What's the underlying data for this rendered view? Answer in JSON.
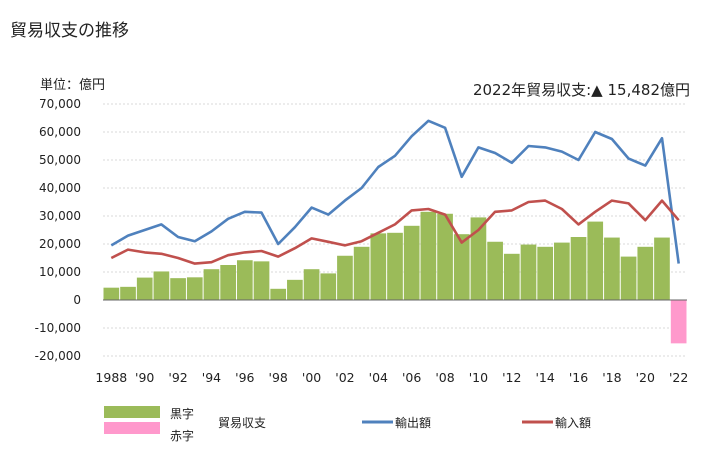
{
  "page": {
    "title": "貿易収支の推移",
    "unit_label": "単位：億円",
    "summary_label": "2022年貿易収支:",
    "summary_symbol": "▲",
    "summary_value": "15,482億円"
  },
  "legend": {
    "surplus_label": "黒字",
    "deficit_label": "赤字",
    "balance_label": "貿易収支",
    "exports_label": "輸出額",
    "imports_label": "輸入額"
  },
  "colors": {
    "surplus": "#9bbb59",
    "deficit": "#ff99cc",
    "exports": "#4f81bd",
    "imports": "#c0504d",
    "axis": "#888888",
    "grid": "#d9d9d9"
  },
  "chart_data": {
    "type": "bar+line",
    "title": "貿易収支の推移",
    "ylabel": "単位：億円",
    "ylim": [
      -20000,
      70000
    ],
    "yticks": [
      -20000,
      -10000,
      0,
      10000,
      20000,
      30000,
      40000,
      50000,
      60000,
      70000
    ],
    "ytick_labels": [
      "-20,000",
      "-10,000",
      "0",
      "10,000",
      "20,000",
      "30,000",
      "40,000",
      "50,000",
      "60,000",
      "70,000"
    ],
    "x": [
      1988,
      1989,
      1990,
      1991,
      1992,
      1993,
      1994,
      1995,
      1996,
      1997,
      1998,
      1999,
      2000,
      2001,
      2002,
      2003,
      2004,
      2005,
      2006,
      2007,
      2008,
      2009,
      2010,
      2011,
      2012,
      2013,
      2014,
      2015,
      2016,
      2017,
      2018,
      2019,
      2020,
      2021,
      2022
    ],
    "xtick_labels": [
      {
        "year": 1988,
        "label": "1988"
      },
      {
        "year": 1990,
        "label": "'90"
      },
      {
        "year": 1992,
        "label": "'92"
      },
      {
        "year": 1994,
        "label": "'94"
      },
      {
        "year": 1996,
        "label": "'96"
      },
      {
        "year": 1998,
        "label": "'98"
      },
      {
        "year": 2000,
        "label": "'00"
      },
      {
        "year": 2002,
        "label": "'02"
      },
      {
        "year": 2004,
        "label": "'04"
      },
      {
        "year": 2006,
        "label": "'06"
      },
      {
        "year": 2008,
        "label": "'08"
      },
      {
        "year": 2010,
        "label": "'10"
      },
      {
        "year": 2012,
        "label": "'12"
      },
      {
        "year": 2014,
        "label": "'14"
      },
      {
        "year": 2016,
        "label": "'16"
      },
      {
        "year": 2018,
        "label": "'18"
      },
      {
        "year": 2020,
        "label": "'20"
      },
      {
        "year": 2022,
        "label": "'22"
      }
    ],
    "series": [
      {
        "name": "貿易収支",
        "kind": "bar",
        "values": [
          4400,
          4700,
          8000,
          10200,
          7800,
          8100,
          11000,
          12500,
          14200,
          13800,
          4000,
          7200,
          11000,
          9500,
          15800,
          19000,
          23800,
          24000,
          26500,
          31500,
          30800,
          23500,
          29500,
          20800,
          16500,
          19800,
          19000,
          20500,
          22500,
          28000,
          22300,
          15500,
          19000,
          22300,
          -15482
        ]
      },
      {
        "name": "輸出額",
        "kind": "line",
        "values": [
          19500,
          23000,
          25000,
          27000,
          22500,
          21000,
          24500,
          29000,
          31500,
          31200,
          20000,
          26000,
          33000,
          30500,
          35500,
          40000,
          47500,
          51500,
          58500,
          64000,
          61500,
          44000,
          54500,
          52500,
          49000,
          55000,
          54500,
          53000,
          50000,
          60000,
          57500,
          50500,
          48000,
          57800,
          13000
        ]
      },
      {
        "name": "輸入額",
        "kind": "line",
        "values": [
          15000,
          18000,
          17000,
          16500,
          15000,
          13000,
          13500,
          16000,
          17000,
          17500,
          15500,
          18500,
          22000,
          20800,
          19500,
          21000,
          24000,
          27000,
          32000,
          32500,
          30500,
          20500,
          25000,
          31500,
          32000,
          35000,
          35500,
          32500,
          27000,
          31500,
          35500,
          34500,
          28500,
          35500,
          28500
        ]
      }
    ]
  }
}
